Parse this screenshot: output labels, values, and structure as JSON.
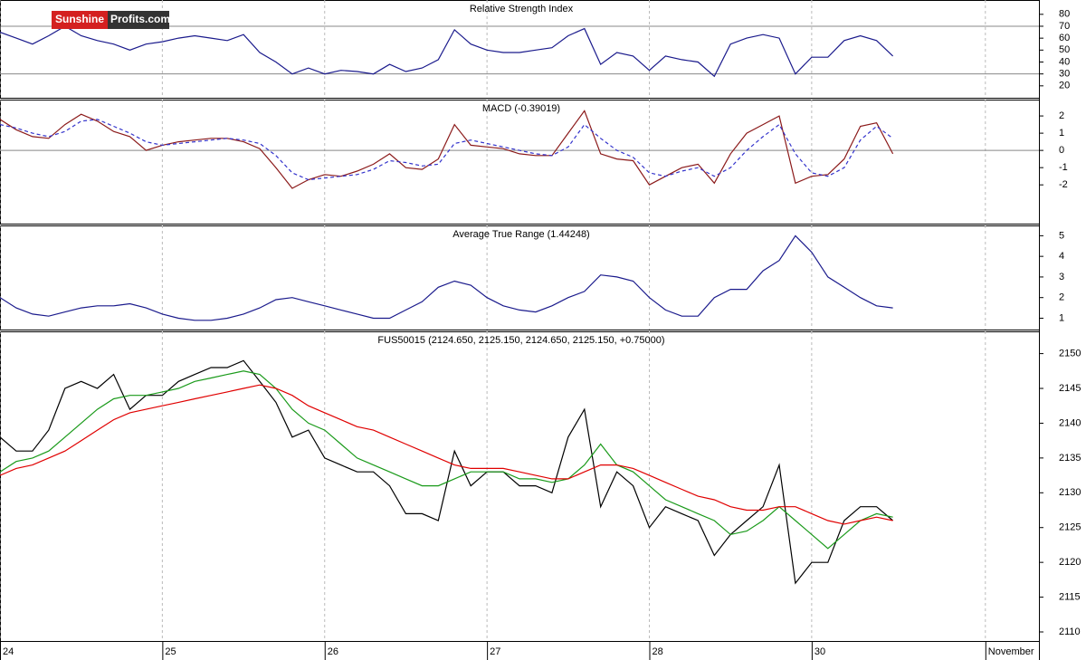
{
  "logo": {
    "part1": "Sunshine",
    "part2": "Profits.com"
  },
  "chart_data": [
    {
      "type": "line",
      "title": "Relative Strength Index",
      "x": [
        0,
        0.1,
        0.2,
        0.3,
        0.4,
        0.5,
        0.6,
        0.7,
        0.8,
        0.9,
        1,
        1.1,
        1.2,
        1.3,
        1.4,
        1.5,
        1.6,
        1.7,
        1.8,
        1.9,
        2,
        2.1,
        2.2,
        2.3,
        2.4,
        2.5,
        2.6,
        2.7,
        2.8,
        2.9,
        3,
        3.1,
        3.2,
        3.3,
        3.4,
        3.5,
        3.6,
        3.7,
        3.8,
        3.9,
        4,
        4.1,
        4.2,
        4.3,
        4.4,
        4.5,
        4.6,
        4.7,
        4.8,
        4.9,
        5,
        5.1,
        5.2,
        5.3,
        5.4,
        5.5
      ],
      "series": [
        {
          "color": "#1a1a8c",
          "values": [
            65,
            60,
            55,
            62,
            70,
            62,
            58,
            55,
            50,
            55,
            57,
            60,
            62,
            60,
            58,
            63,
            48,
            40,
            30,
            35,
            30,
            33,
            32,
            30,
            38,
            32,
            35,
            42,
            67,
            55,
            50,
            48,
            48,
            50,
            52,
            62,
            68,
            38,
            48,
            45,
            33,
            45,
            42,
            40,
            28,
            55,
            60,
            63,
            60,
            30,
            44,
            44,
            58,
            62,
            58,
            45
          ]
        }
      ],
      "reference_lines": [
        70,
        30
      ],
      "xlim": [
        0,
        6.4
      ],
      "ylim": [
        10,
        92
      ],
      "yticks": [
        20,
        30,
        40,
        50,
        60,
        70,
        80
      ]
    },
    {
      "type": "line",
      "title": "MACD (-0.39019)",
      "x": [
        0,
        0.1,
        0.2,
        0.3,
        0.4,
        0.5,
        0.6,
        0.7,
        0.8,
        0.9,
        1,
        1.1,
        1.2,
        1.3,
        1.4,
        1.5,
        1.6,
        1.7,
        1.8,
        1.9,
        2,
        2.1,
        2.2,
        2.3,
        2.4,
        2.5,
        2.6,
        2.7,
        2.8,
        2.9,
        3,
        3.1,
        3.2,
        3.3,
        3.4,
        3.5,
        3.6,
        3.7,
        3.8,
        3.9,
        4,
        4.1,
        4.2,
        4.3,
        4.4,
        4.5,
        4.6,
        4.7,
        4.8,
        4.9,
        5,
        5.1,
        5.2,
        5.3,
        5.4,
        5.5
      ],
      "series": [
        {
          "color": "#8b1a1a",
          "values": [
            1.8,
            1.2,
            0.8,
            0.7,
            1.5,
            2.1,
            1.7,
            1.1,
            0.8,
            0.0,
            0.3,
            0.5,
            0.6,
            0.7,
            0.7,
            0.5,
            0.1,
            -1.0,
            -2.2,
            -1.7,
            -1.4,
            -1.5,
            -1.2,
            -0.8,
            -0.2,
            -1.0,
            -1.1,
            -0.5,
            1.5,
            0.3,
            0.2,
            0.1,
            -0.2,
            -0.3,
            -0.3,
            1.0,
            2.3,
            -0.2,
            -0.5,
            -0.6,
            -2.0,
            -1.5,
            -1.0,
            -0.8,
            -1.9,
            -0.2,
            1.0,
            1.5,
            2.0,
            -1.9,
            -1.5,
            -1.4,
            -0.5,
            1.4,
            1.6,
            -0.2
          ]
        },
        {
          "color": "#3333cc",
          "dash": true,
          "values": [
            1.5,
            1.3,
            1.0,
            0.8,
            1.1,
            1.7,
            1.8,
            1.4,
            1.0,
            0.5,
            0.3,
            0.4,
            0.5,
            0.6,
            0.7,
            0.6,
            0.4,
            -0.3,
            -1.3,
            -1.7,
            -1.6,
            -1.5,
            -1.4,
            -1.1,
            -0.6,
            -0.7,
            -0.9,
            -0.8,
            0.4,
            0.6,
            0.4,
            0.2,
            0.0,
            -0.2,
            -0.3,
            0.2,
            1.5,
            0.7,
            0.0,
            -0.4,
            -1.3,
            -1.5,
            -1.2,
            -1.0,
            -1.5,
            -1.0,
            0.0,
            0.8,
            1.5,
            -0.2,
            -1.3,
            -1.5,
            -1.0,
            0.6,
            1.4,
            0.7
          ]
        }
      ],
      "reference_lines": [
        0
      ],
      "xlim": [
        0,
        6.4
      ],
      "ylim": [
        -4.25,
        2.95
      ],
      "yticks": [
        -2,
        -1,
        0,
        1,
        2
      ]
    },
    {
      "type": "line",
      "title": "Average True Range (1.44248)",
      "x": [
        0,
        0.1,
        0.2,
        0.3,
        0.4,
        0.5,
        0.6,
        0.7,
        0.8,
        0.9,
        1,
        1.1,
        1.2,
        1.3,
        1.4,
        1.5,
        1.6,
        1.7,
        1.8,
        1.9,
        2,
        2.1,
        2.2,
        2.3,
        2.4,
        2.5,
        2.6,
        2.7,
        2.8,
        2.9,
        3,
        3.1,
        3.2,
        3.3,
        3.4,
        3.5,
        3.6,
        3.7,
        3.8,
        3.9,
        4,
        4.1,
        4.2,
        4.3,
        4.4,
        4.5,
        4.6,
        4.7,
        4.8,
        4.9,
        5,
        5.1,
        5.2,
        5.3,
        5.4,
        5.5
      ],
      "series": [
        {
          "color": "#1a1a8c",
          "values": [
            2.0,
            1.5,
            1.2,
            1.1,
            1.3,
            1.5,
            1.6,
            1.6,
            1.7,
            1.5,
            1.2,
            1.0,
            0.9,
            0.9,
            1.0,
            1.2,
            1.5,
            1.9,
            2.0,
            1.8,
            1.6,
            1.4,
            1.2,
            1.0,
            1.0,
            1.4,
            1.8,
            2.5,
            2.8,
            2.6,
            2.0,
            1.6,
            1.4,
            1.3,
            1.6,
            2.0,
            2.3,
            3.1,
            3.0,
            2.8,
            2.0,
            1.4,
            1.1,
            1.1,
            2.0,
            2.4,
            2.4,
            3.3,
            3.8,
            5.0,
            4.2,
            3.0,
            2.5,
            2.0,
            1.6,
            1.5
          ]
        }
      ],
      "xlim": [
        0,
        6.4
      ],
      "ylim": [
        0.45,
        5.5
      ],
      "yticks": [
        1,
        2,
        3,
        4,
        5
      ]
    },
    {
      "type": "line",
      "title": "FUS50015 (2124.650, 2125.150, 2124.650, 2125.150, +0.75000)",
      "x": [
        0,
        0.1,
        0.2,
        0.3,
        0.4,
        0.5,
        0.6,
        0.7,
        0.8,
        0.9,
        1,
        1.1,
        1.2,
        1.3,
        1.4,
        1.5,
        1.6,
        1.7,
        1.8,
        1.9,
        2,
        2.1,
        2.2,
        2.3,
        2.4,
        2.5,
        2.6,
        2.7,
        2.8,
        2.9,
        3,
        3.1,
        3.2,
        3.3,
        3.4,
        3.5,
        3.6,
        3.7,
        3.8,
        3.9,
        4,
        4.1,
        4.2,
        4.3,
        4.4,
        4.5,
        4.6,
        4.7,
        4.8,
        4.9,
        5,
        5.1,
        5.2,
        5.3,
        5.4,
        5.5
      ],
      "series": [
        {
          "color": "#000000",
          "values": [
            2138,
            2136,
            2136,
            2139,
            2145,
            2146,
            2145,
            2147,
            2142,
            2144,
            2144,
            2146,
            2147,
            2148,
            2148,
            2149,
            2146,
            2143,
            2138,
            2139,
            2135,
            2134,
            2133,
            2133,
            2131,
            2127,
            2127,
            2126,
            2136,
            2131,
            2133,
            2133,
            2131,
            2131,
            2130,
            2138,
            2142,
            2128,
            2133,
            2131,
            2125,
            2128,
            2127,
            2126,
            2121,
            2124,
            2126,
            2128,
            2134,
            2117,
            2120,
            2120,
            2126,
            2128,
            2128,
            2126
          ]
        },
        {
          "color": "#1a9a1a",
          "values": [
            2133,
            2134.5,
            2135,
            2136,
            2138,
            2140,
            2142,
            2143.5,
            2144,
            2144,
            2144.5,
            2145,
            2146,
            2146.5,
            2147,
            2147.5,
            2147,
            2145,
            2142,
            2140,
            2139,
            2137,
            2135,
            2134,
            2133,
            2132,
            2131,
            2131,
            2132,
            2133,
            2133,
            2133,
            2132,
            2132,
            2131.5,
            2132,
            2134,
            2137,
            2134,
            2133,
            2131,
            2129,
            2128,
            2127,
            2126,
            2124,
            2124.5,
            2126,
            2128,
            2126,
            2124,
            2122,
            2124,
            2126,
            2127,
            2126.5
          ]
        },
        {
          "color": "#e00000",
          "values": [
            2132.5,
            2133.5,
            2134,
            2135,
            2136,
            2137.5,
            2139,
            2140.5,
            2141.5,
            2142,
            2142.5,
            2143,
            2143.5,
            2144,
            2144.5,
            2145,
            2145.5,
            2145,
            2144,
            2142.5,
            2141.5,
            2140.5,
            2139.5,
            2139,
            2138,
            2137,
            2136,
            2135,
            2134,
            2133.5,
            2133.5,
            2133.5,
            2133,
            2132.5,
            2132,
            2132,
            2133,
            2134,
            2134,
            2133.5,
            2132.5,
            2131.5,
            2130.5,
            2129.5,
            2129,
            2128,
            2127.5,
            2127.5,
            2128,
            2128,
            2127,
            2126,
            2125.5,
            2126,
            2126.5,
            2126
          ]
        }
      ],
      "xlim": [
        0,
        6.4
      ],
      "ylim": [
        2108.7,
        2153.2
      ],
      "yticks": [
        2110,
        2115,
        2120,
        2125,
        2130,
        2135,
        2140,
        2145,
        2150
      ],
      "xticks": [
        {
          "value": 0,
          "label": "24"
        },
        {
          "value": 1,
          "label": "25"
        },
        {
          "value": 2,
          "label": "26"
        },
        {
          "value": 3,
          "label": "27"
        },
        {
          "value": 4,
          "label": "28"
        },
        {
          "value": 5,
          "label": "30"
        },
        {
          "value": 6.07,
          "label": "November"
        }
      ]
    }
  ]
}
